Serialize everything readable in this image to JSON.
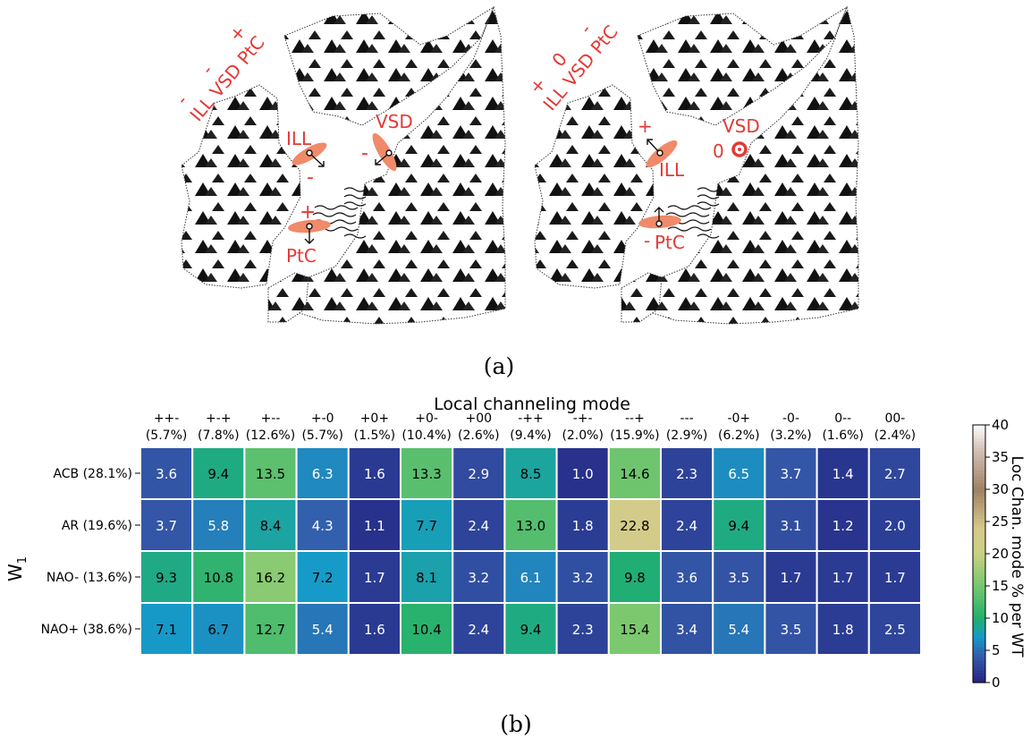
{
  "panel_a": {
    "caption": "(a)",
    "left": {
      "rot_signs": [
        "-",
        "-",
        "+"
      ],
      "rot_label": "ILL VSD PtC",
      "ill_label": "ILL",
      "ill_sign": "-",
      "vsd_label": "VSD",
      "vsd_sign": "-",
      "ptc_label": "PtC",
      "ptc_sign": "+"
    },
    "right": {
      "rot_signs": [
        "+",
        "0",
        "-"
      ],
      "rot_label": "ILL VSD PtC",
      "ill_label": "ILL",
      "ill_sign": "+",
      "vsd_label": "VSD",
      "vsd_sign": "0",
      "ptc_label": "PtC",
      "ptc_sign": "-"
    }
  },
  "panel_b": {
    "caption": "(b)"
  },
  "colors": {
    "annotation": "#e53935",
    "lobe": "#f08a6a"
  },
  "chart_data": {
    "type": "heatmap",
    "xlabel_top": "Local channeling mode",
    "ylabel": "W",
    "ylabel_sub": "1",
    "colorbar_label": "Loc Chan. mode % per WT",
    "colorbar_ticks": [
      "0",
      "5",
      "10",
      "15",
      "20",
      "25",
      "30",
      "35",
      "40"
    ],
    "vmin": 0,
    "vmax": 40,
    "colormap": "gist_earth",
    "columns": [
      "++-",
      "+-+",
      "+--",
      "+-0",
      "+0+",
      "+0-",
      "+00",
      "-++",
      "-+-",
      "--+",
      "---",
      "-0+",
      "-0-",
      "0--",
      "00-"
    ],
    "column_pct": [
      "(5.7%)",
      "(7.8%)",
      "(12.6%)",
      "(5.7%)",
      "(1.5%)",
      "(10.4%)",
      "(2.6%)",
      "(9.4%)",
      "(2.0%)",
      "(15.9%)",
      "(2.9%)",
      "(6.2%)",
      "(3.2%)",
      "(1.6%)",
      "(2.4%)"
    ],
    "rows": [
      "ACB (28.1%)",
      "AR (19.6%)",
      "NAO- (13.6%)",
      "NAO+ (38.6%)"
    ],
    "values": [
      [
        3.6,
        9.4,
        13.5,
        6.3,
        1.6,
        13.3,
        2.9,
        8.5,
        1.0,
        14.6,
        2.3,
        6.5,
        3.7,
        1.4,
        2.7
      ],
      [
        3.7,
        5.8,
        8.4,
        4.3,
        1.1,
        7.7,
        2.4,
        13.0,
        1.8,
        22.8,
        2.4,
        9.4,
        3.1,
        1.2,
        2.0
      ],
      [
        9.3,
        10.8,
        16.2,
        7.2,
        1.7,
        8.1,
        3.2,
        6.1,
        3.2,
        9.8,
        3.6,
        3.5,
        1.7,
        1.7,
        1.7
      ],
      [
        7.1,
        6.7,
        12.7,
        5.4,
        1.6,
        10.4,
        2.4,
        9.4,
        2.3,
        15.4,
        3.4,
        5.4,
        3.5,
        1.8,
        2.5
      ]
    ]
  }
}
